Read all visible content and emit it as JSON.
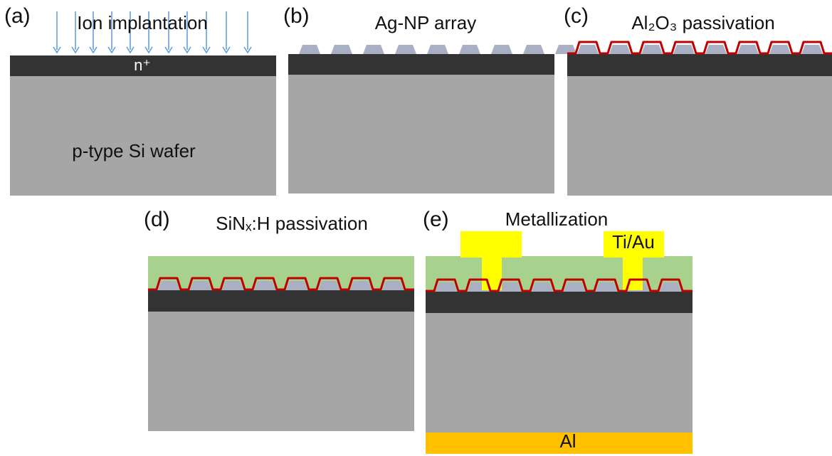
{
  "panels": [
    {
      "label": "(a)",
      "title": "Ion implantation",
      "layer_label": "n⁺",
      "substrate_label": "p-type Si wafer"
    },
    {
      "label": "(b)",
      "title": "Ag-NP array"
    },
    {
      "label": "(c)",
      "title": "Al₂O₃ passivation"
    },
    {
      "label": "(d)",
      "title": "SiNₓ:H passivation"
    },
    {
      "label": "(e)",
      "title": "Metallization",
      "contact_label": "Ti/Au",
      "back_label": "Al"
    }
  ]
}
